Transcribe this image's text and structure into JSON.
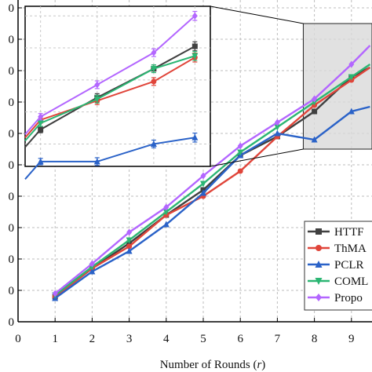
{
  "chart_data": {
    "type": "line",
    "xlabel_text": "Number of Rounds (",
    "xlabel_var": "r",
    "xlabel_close": ")",
    "x_ticks": [
      "0",
      "1",
      "2",
      "3",
      "4",
      "5",
      "6",
      "7",
      "8",
      "9"
    ],
    "y_ticks": [
      "0",
      "0",
      "0",
      "0",
      "0",
      "0",
      "0",
      "0",
      "0",
      "0",
      "0"
    ],
    "xlim": [
      0,
      9.5
    ],
    "ylim": [
      0,
      10
    ],
    "grid": true,
    "legend_position": "right",
    "legend_entries": [
      "HTTF",
      "ThMA",
      "PCLR",
      "COML",
      "Propo"
    ],
    "series": [
      {
        "name": "HTTF",
        "color": "#404040",
        "marker": "square",
        "x": [
          1,
          2,
          3,
          4,
          5,
          6,
          7,
          8,
          9,
          9.5
        ],
        "y": [
          0.8,
          1.7,
          2.5,
          3.4,
          4.2,
          5.3,
          5.9,
          6.7,
          7.8,
          8.1
        ]
      },
      {
        "name": "ThMA",
        "color": "#e0453a",
        "marker": "circle",
        "x": [
          1,
          2,
          3,
          4,
          5,
          6,
          7,
          8,
          9,
          9.5
        ],
        "y": [
          0.8,
          1.7,
          2.4,
          3.4,
          4.0,
          4.8,
          5.9,
          6.9,
          7.7,
          8.1
        ]
      },
      {
        "name": "PCLR",
        "color": "#2a62c8",
        "marker": "triangle",
        "x": [
          1,
          2,
          3,
          4,
          5,
          6,
          7,
          8,
          9,
          9.5
        ],
        "y": [
          0.75,
          1.6,
          2.25,
          3.1,
          4.1,
          5.3,
          6.0,
          5.8,
          6.7,
          6.85
        ]
      },
      {
        "name": "COML",
        "color": "#2bb673",
        "marker": "triangle-down",
        "x": [
          1,
          2,
          3,
          4,
          5,
          6,
          7,
          8,
          9,
          9.5
        ],
        "y": [
          0.85,
          1.75,
          2.6,
          3.5,
          4.4,
          5.4,
          6.2,
          7.0,
          7.8,
          8.2
        ]
      },
      {
        "name": "Propo",
        "color": "#b366ff",
        "marker": "diamond",
        "x": [
          1,
          2,
          3,
          4,
          5,
          6,
          7,
          8,
          9,
          9.5
        ],
        "y": [
          0.9,
          1.85,
          2.85,
          3.65,
          4.65,
          5.6,
          6.35,
          7.1,
          8.2,
          8.8
        ]
      }
    ],
    "inset": {
      "zoom_xlim": [
        7.7,
        9.5
      ],
      "zoom_ylim": [
        5.5,
        9.5
      ],
      "x": [
        7.85,
        8.4,
        8.95,
        9.35
      ],
      "errors": [
        0.1,
        0.12,
        0.12,
        0.14
      ],
      "series": [
        {
          "name": "HTTF",
          "y": [
            6.45,
            7.45,
            8.35,
            9.05
          ]
        },
        {
          "name": "ThMA",
          "y": [
            6.75,
            7.35,
            7.95,
            8.7
          ]
        },
        {
          "name": "PCLR",
          "y": [
            5.45,
            5.45,
            6.0,
            6.2
          ]
        },
        {
          "name": "COML",
          "y": [
            6.65,
            7.4,
            8.35,
            8.75
          ]
        },
        {
          "name": "Propo",
          "y": [
            6.85,
            7.85,
            8.85,
            10.0
          ]
        }
      ]
    }
  }
}
